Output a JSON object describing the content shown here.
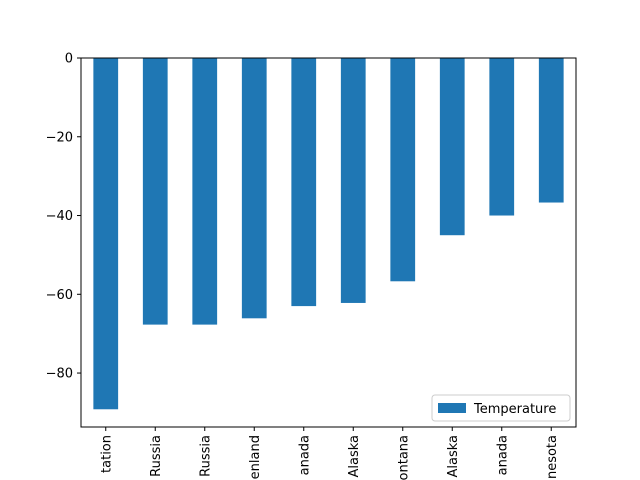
{
  "chart_data": {
    "type": "bar",
    "categories": [
      "tation",
      "Russia",
      "Russia",
      "enland",
      "anada",
      "Alaska",
      "ontana",
      "Alaska",
      "anada",
      "nesota"
    ],
    "series": [
      {
        "name": "Temperature",
        "values": [
          -89.2,
          -67.7,
          -67.7,
          -66.1,
          -63.0,
          -62.2,
          -56.7,
          -45.0,
          -40.0,
          -36.7
        ]
      }
    ],
    "ylim": [
      -93.7,
      0
    ],
    "yticks": [
      0,
      -20,
      -40,
      -60,
      -80
    ],
    "ytick_labels": [
      "0",
      "−20",
      "−40",
      "−60",
      "−80"
    ],
    "legend": {
      "position": "lower right",
      "labels": [
        "Temperature"
      ]
    },
    "grid": false,
    "title": "",
    "xlabel": "",
    "ylabel": "",
    "colors": {
      "bar": "#1f77b4"
    }
  }
}
